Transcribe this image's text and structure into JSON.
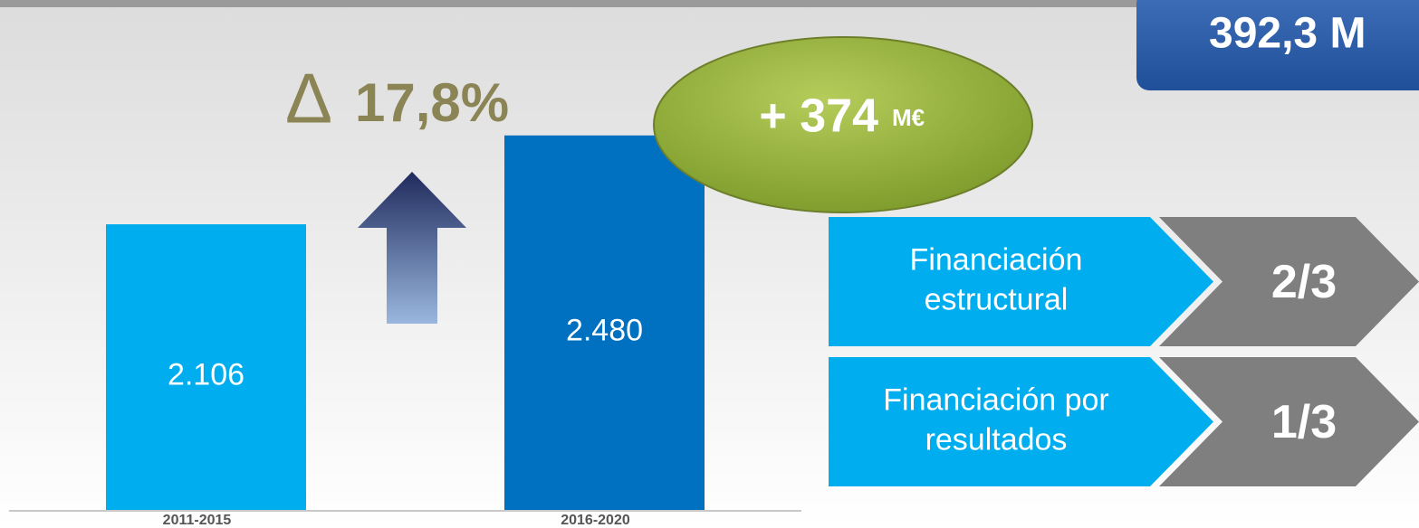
{
  "chart_data": {
    "type": "bar",
    "categories": [
      "2011-2015",
      "2016-2020"
    ],
    "values": [
      2106,
      2480
    ],
    "value_labels": [
      "2.106",
      "2.480"
    ],
    "colors": [
      "#00aeef",
      "#0070c0"
    ],
    "ylim": [
      900,
      3050
    ]
  },
  "change": {
    "label": "17,8%"
  },
  "increase": {
    "amount": "+ 374",
    "unit": "M€"
  },
  "total": {
    "label": "392,3 M"
  },
  "funding": [
    {
      "label": "Financiación estructural",
      "share": "2/3"
    },
    {
      "label": "Financiación por resultados",
      "share": "1/3"
    }
  ]
}
